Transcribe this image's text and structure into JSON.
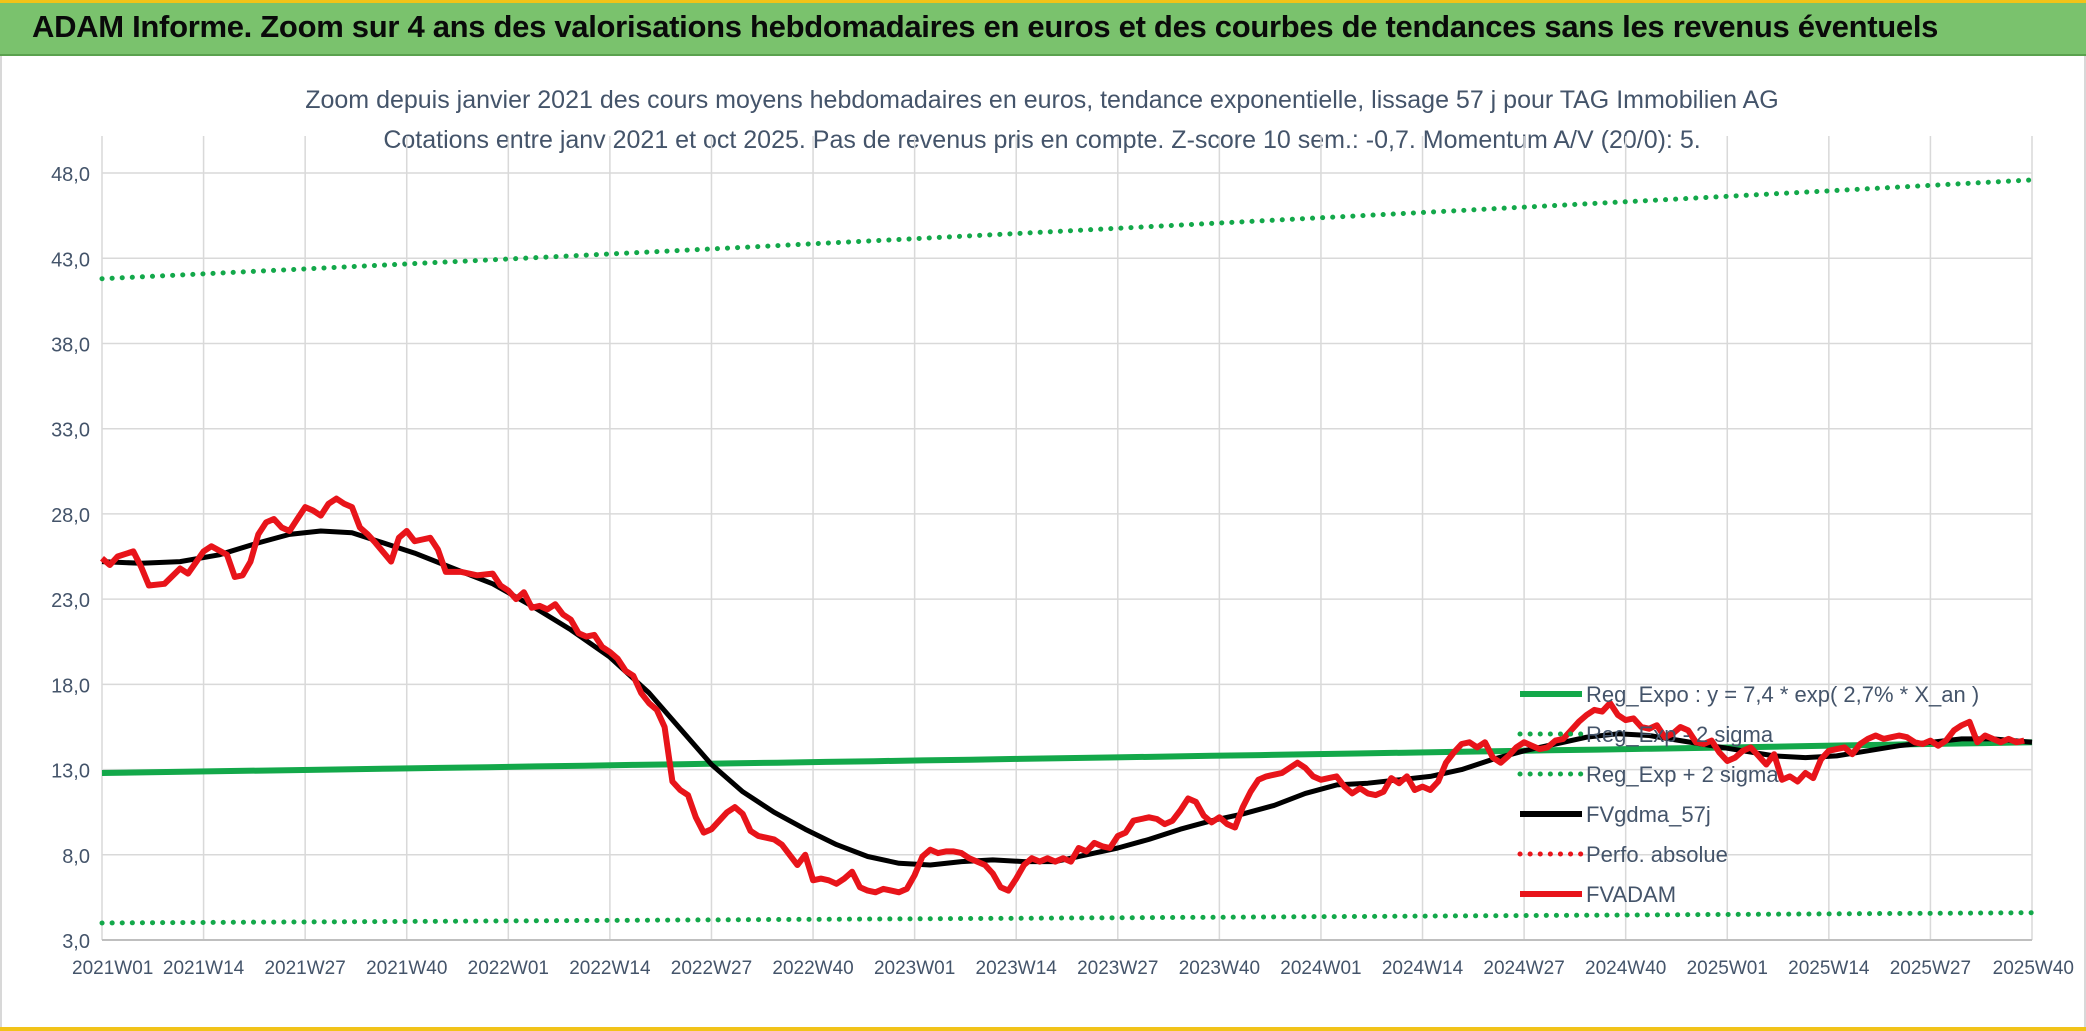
{
  "banner": {
    "title": "ADAM Informe. Zoom sur 4 ans des valorisations hebdomadaires en euros et des courbes de tendances sans les revenus éventuels"
  },
  "colors": {
    "banner_bg": "#7ac26d",
    "reg_expo": "#13a84a",
    "fvgdma": "#000000",
    "fvadam": "#e8141a",
    "perfo": "#e8141a",
    "grid": "#d9d9d9",
    "text": "#44546a"
  },
  "chart_data": {
    "type": "line",
    "title": "Zoom depuis janvier 2021 des cours moyens hebdomadaires en euros, tendance exponentielle, lissage 57 j pour TAG Immobilien AG",
    "subtitle": "Cotations entre janv 2021 et oct 2025. Pas de revenus pris en compte. Z-score 10 sem.: -0,7. Momentum A/V (20/0): 5.",
    "xlabel": "",
    "ylabel": "",
    "ylim": [
      3.0,
      49.0
    ],
    "yticks": [
      "3,0",
      "8,0",
      "13,0",
      "18,0",
      "23,0",
      "28,0",
      "33,0",
      "38,0",
      "43,0",
      "48,0"
    ],
    "xticks": [
      "2021W01",
      "2021W14",
      "2021W27",
      "2021W40",
      "2022W01",
      "2022W14",
      "2022W27",
      "2022W40",
      "2023W01",
      "2023W14",
      "2023W27",
      "2023W40",
      "2024W01",
      "2024W14",
      "2024W27",
      "2024W40",
      "2025W01",
      "2025W14",
      "2025W27",
      "2025W40"
    ],
    "x_range_weeks": [
      0,
      247
    ],
    "legend_position": "bottom-right",
    "series": [
      {
        "name": "Reg_Expo : y = 7,4 * exp( 2,7% *  X_an )",
        "style": "solid-thick",
        "color": "#13a84a",
        "points": [
          [
            0,
            12.8
          ],
          [
            247,
            14.6
          ]
        ]
      },
      {
        "name": "Reg_Exp - 2 sigma",
        "style": "dotted",
        "color": "#13a84a",
        "points": [
          [
            0,
            4.0
          ],
          [
            247,
            4.6
          ]
        ]
      },
      {
        "name": "Reg_Exp + 2 sigma",
        "style": "dotted",
        "color": "#13a84a",
        "points": [
          [
            0,
            41.8
          ],
          [
            247,
            47.6
          ]
        ]
      },
      {
        "name": "FVgdma_57j",
        "style": "solid",
        "color": "#000000",
        "points": [
          [
            0,
            25.2
          ],
          [
            5,
            25.1
          ],
          [
            10,
            25.2
          ],
          [
            15,
            25.6
          ],
          [
            20,
            26.3
          ],
          [
            24,
            26.8
          ],
          [
            28,
            27.0
          ],
          [
            32,
            26.9
          ],
          [
            36,
            26.3
          ],
          [
            40,
            25.7
          ],
          [
            45,
            24.8
          ],
          [
            50,
            23.9
          ],
          [
            55,
            22.6
          ],
          [
            60,
            21.2
          ],
          [
            65,
            19.6
          ],
          [
            70,
            17.5
          ],
          [
            74,
            15.4
          ],
          [
            78,
            13.3
          ],
          [
            82,
            11.7
          ],
          [
            86,
            10.5
          ],
          [
            90,
            9.5
          ],
          [
            94,
            8.6
          ],
          [
            98,
            7.9
          ],
          [
            102,
            7.5
          ],
          [
            106,
            7.4
          ],
          [
            110,
            7.6
          ],
          [
            114,
            7.7
          ],
          [
            118,
            7.6
          ],
          [
            122,
            7.6
          ],
          [
            126,
            8.0
          ],
          [
            130,
            8.4
          ],
          [
            134,
            8.9
          ],
          [
            138,
            9.5
          ],
          [
            142,
            10.0
          ],
          [
            146,
            10.4
          ],
          [
            150,
            10.9
          ],
          [
            154,
            11.6
          ],
          [
            158,
            12.1
          ],
          [
            162,
            12.2
          ],
          [
            166,
            12.4
          ],
          [
            170,
            12.6
          ],
          [
            174,
            13.0
          ],
          [
            178,
            13.6
          ],
          [
            182,
            14.1
          ],
          [
            186,
            14.5
          ],
          [
            190,
            14.9
          ],
          [
            194,
            15.1
          ],
          [
            198,
            15.0
          ],
          [
            202,
            14.7
          ],
          [
            206,
            14.4
          ],
          [
            210,
            14.1
          ],
          [
            214,
            13.8
          ],
          [
            218,
            13.7
          ],
          [
            222,
            13.8
          ],
          [
            226,
            14.1
          ],
          [
            230,
            14.4
          ],
          [
            234,
            14.6
          ],
          [
            238,
            14.8
          ],
          [
            242,
            14.8
          ],
          [
            247,
            14.6
          ]
        ]
      },
      {
        "name": "Perfo. absolue",
        "style": "dotted",
        "color": "#e8141a",
        "points": []
      },
      {
        "name": "FVADAM",
        "style": "solid-thick",
        "color": "#e8141a",
        "points": [
          [
            0,
            25.4
          ],
          [
            1,
            25.0
          ],
          [
            2,
            25.5
          ],
          [
            4,
            25.8
          ],
          [
            5,
            24.9
          ],
          [
            6,
            23.8
          ],
          [
            8,
            23.9
          ],
          [
            10,
            24.8
          ],
          [
            11,
            24.5
          ],
          [
            13,
            25.8
          ],
          [
            14,
            26.1
          ],
          [
            16,
            25.6
          ],
          [
            17,
            24.3
          ],
          [
            18,
            24.4
          ],
          [
            19,
            25.2
          ],
          [
            20,
            26.8
          ],
          [
            21,
            27.5
          ],
          [
            22,
            27.7
          ],
          [
            23,
            27.2
          ],
          [
            24,
            27.0
          ],
          [
            25,
            27.7
          ],
          [
            26,
            28.4
          ],
          [
            27,
            28.2
          ],
          [
            28,
            27.9
          ],
          [
            29,
            28.6
          ],
          [
            30,
            28.9
          ],
          [
            31,
            28.6
          ],
          [
            32,
            28.4
          ],
          [
            33,
            27.2
          ],
          [
            34,
            26.8
          ],
          [
            35,
            26.3
          ],
          [
            37,
            25.2
          ],
          [
            38,
            26.6
          ],
          [
            39,
            27.0
          ],
          [
            40,
            26.4
          ],
          [
            41,
            26.5
          ],
          [
            42,
            26.6
          ],
          [
            43,
            25.9
          ],
          [
            44,
            24.6
          ],
          [
            46,
            24.6
          ],
          [
            48,
            24.4
          ],
          [
            50,
            24.5
          ],
          [
            51,
            23.8
          ],
          [
            52,
            23.5
          ],
          [
            53,
            23.0
          ],
          [
            54,
            23.4
          ],
          [
            55,
            22.5
          ],
          [
            56,
            22.6
          ],
          [
            57,
            22.4
          ],
          [
            58,
            22.7
          ],
          [
            59,
            22.1
          ],
          [
            60,
            21.8
          ],
          [
            61,
            21.0
          ],
          [
            62,
            20.8
          ],
          [
            63,
            20.9
          ],
          [
            64,
            20.2
          ],
          [
            65,
            19.9
          ],
          [
            66,
            19.5
          ],
          [
            67,
            18.8
          ],
          [
            68,
            18.5
          ],
          [
            69,
            17.5
          ],
          [
            70,
            16.9
          ],
          [
            71,
            16.5
          ],
          [
            72,
            15.5
          ],
          [
            73,
            12.3
          ],
          [
            74,
            11.8
          ],
          [
            75,
            11.5
          ],
          [
            76,
            10.2
          ],
          [
            77,
            9.3
          ],
          [
            78,
            9.5
          ],
          [
            79,
            10.0
          ],
          [
            80,
            10.5
          ],
          [
            81,
            10.8
          ],
          [
            82,
            10.4
          ],
          [
            83,
            9.4
          ],
          [
            84,
            9.1
          ],
          [
            85,
            9.0
          ],
          [
            86,
            8.9
          ],
          [
            87,
            8.6
          ],
          [
            88,
            8.0
          ],
          [
            89,
            7.4
          ],
          [
            90,
            8.0
          ],
          [
            91,
            6.5
          ],
          [
            92,
            6.6
          ],
          [
            93,
            6.5
          ],
          [
            94,
            6.3
          ],
          [
            95,
            6.6
          ],
          [
            96,
            7.0
          ],
          [
            97,
            6.1
          ],
          [
            98,
            5.9
          ],
          [
            99,
            5.8
          ],
          [
            100,
            6.0
          ],
          [
            101,
            5.9
          ],
          [
            102,
            5.8
          ],
          [
            103,
            6.0
          ],
          [
            104,
            6.8
          ],
          [
            105,
            7.9
          ],
          [
            106,
            8.3
          ],
          [
            107,
            8.1
          ],
          [
            108,
            8.2
          ],
          [
            109,
            8.2
          ],
          [
            110,
            8.1
          ],
          [
            111,
            7.8
          ],
          [
            112,
            7.6
          ],
          [
            113,
            7.4
          ],
          [
            114,
            6.9
          ],
          [
            115,
            6.1
          ],
          [
            116,
            5.9
          ],
          [
            117,
            6.6
          ],
          [
            118,
            7.4
          ],
          [
            119,
            7.8
          ],
          [
            120,
            7.6
          ],
          [
            121,
            7.8
          ],
          [
            122,
            7.6
          ],
          [
            123,
            7.8
          ],
          [
            124,
            7.6
          ],
          [
            125,
            8.4
          ],
          [
            126,
            8.2
          ],
          [
            127,
            8.7
          ],
          [
            128,
            8.5
          ],
          [
            129,
            8.4
          ],
          [
            130,
            9.1
          ],
          [
            131,
            9.3
          ],
          [
            132,
            10.0
          ],
          [
            133,
            10.1
          ],
          [
            134,
            10.2
          ],
          [
            135,
            10.1
          ],
          [
            136,
            9.8
          ],
          [
            137,
            10.0
          ],
          [
            138,
            10.6
          ],
          [
            139,
            11.3
          ],
          [
            140,
            11.1
          ],
          [
            141,
            10.3
          ],
          [
            142,
            9.9
          ],
          [
            143,
            10.2
          ],
          [
            144,
            9.8
          ],
          [
            145,
            9.6
          ],
          [
            146,
            10.8
          ],
          [
            147,
            11.7
          ],
          [
            148,
            12.4
          ],
          [
            149,
            12.6
          ],
          [
            150,
            12.7
          ],
          [
            151,
            12.8
          ],
          [
            152,
            13.1
          ],
          [
            153,
            13.4
          ],
          [
            154,
            13.1
          ],
          [
            155,
            12.6
          ],
          [
            156,
            12.4
          ],
          [
            157,
            12.5
          ],
          [
            158,
            12.6
          ],
          [
            159,
            12.0
          ],
          [
            160,
            11.6
          ],
          [
            161,
            11.9
          ],
          [
            162,
            11.6
          ],
          [
            163,
            11.5
          ],
          [
            164,
            11.7
          ],
          [
            165,
            12.5
          ],
          [
            166,
            12.2
          ],
          [
            167,
            12.6
          ],
          [
            168,
            11.8
          ],
          [
            169,
            12.0
          ],
          [
            170,
            11.8
          ],
          [
            171,
            12.3
          ],
          [
            172,
            13.4
          ],
          [
            173,
            14.0
          ],
          [
            174,
            14.5
          ],
          [
            175,
            14.6
          ],
          [
            176,
            14.3
          ],
          [
            177,
            14.6
          ],
          [
            178,
            13.7
          ],
          [
            179,
            13.4
          ],
          [
            180,
            13.8
          ],
          [
            181,
            14.3
          ],
          [
            182,
            14.6
          ],
          [
            183,
            14.4
          ],
          [
            184,
            14.2
          ],
          [
            185,
            14.3
          ],
          [
            186,
            14.7
          ],
          [
            187,
            14.8
          ],
          [
            188,
            15.3
          ],
          [
            189,
            15.8
          ],
          [
            190,
            16.2
          ],
          [
            191,
            16.5
          ],
          [
            192,
            16.4
          ],
          [
            193,
            16.9
          ],
          [
            194,
            16.2
          ],
          [
            195,
            15.9
          ],
          [
            196,
            16.0
          ],
          [
            197,
            15.5
          ],
          [
            198,
            15.4
          ],
          [
            199,
            15.6
          ],
          [
            200,
            14.9
          ],
          [
            201,
            15.1
          ],
          [
            202,
            15.5
          ],
          [
            203,
            15.3
          ],
          [
            204,
            14.6
          ],
          [
            205,
            14.5
          ],
          [
            206,
            14.7
          ],
          [
            207,
            14.0
          ],
          [
            208,
            13.5
          ],
          [
            209,
            13.7
          ],
          [
            210,
            14.1
          ],
          [
            211,
            14.3
          ],
          [
            212,
            13.8
          ],
          [
            213,
            13.3
          ],
          [
            214,
            13.9
          ],
          [
            215,
            12.4
          ],
          [
            216,
            12.6
          ],
          [
            217,
            12.3
          ],
          [
            218,
            12.8
          ],
          [
            219,
            12.5
          ],
          [
            220,
            13.6
          ],
          [
            221,
            14.1
          ],
          [
            222,
            14.2
          ],
          [
            223,
            14.3
          ],
          [
            224,
            13.9
          ],
          [
            225,
            14.5
          ],
          [
            226,
            14.8
          ],
          [
            227,
            15.0
          ],
          [
            228,
            14.8
          ],
          [
            229,
            14.9
          ],
          [
            230,
            15.0
          ],
          [
            231,
            14.9
          ],
          [
            232,
            14.6
          ],
          [
            233,
            14.5
          ],
          [
            234,
            14.7
          ],
          [
            235,
            14.4
          ],
          [
            236,
            14.7
          ],
          [
            237,
            15.3
          ],
          [
            238,
            15.6
          ],
          [
            239,
            15.8
          ],
          [
            240,
            14.6
          ],
          [
            241,
            15.0
          ],
          [
            242,
            14.8
          ],
          [
            243,
            14.6
          ],
          [
            244,
            14.8
          ],
          [
            245,
            14.6
          ],
          [
            246,
            14.7
          ]
        ]
      }
    ]
  }
}
